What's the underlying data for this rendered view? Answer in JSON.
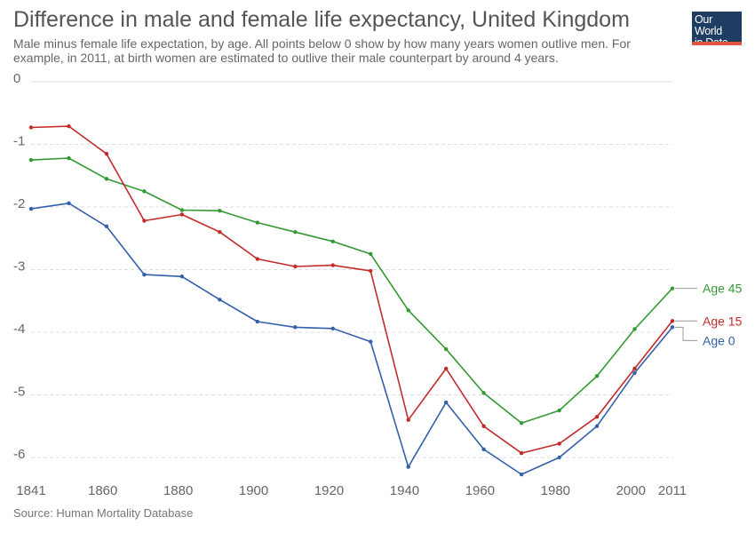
{
  "title": "Difference in male and female life expectancy, United Kingdom",
  "subtitle": "Male minus female life expectation, by age. All points below 0 show by how many years women outlive men. For example, in 2011, at birth women are estimated to outlive their male counterpart by around 4 years.",
  "logo": {
    "line1": "Our World",
    "line2": "in Data"
  },
  "source": "Source: Human Mortality Database",
  "colors": {
    "Age 0": "#3360a9",
    "Age 15": "#c42a2a",
    "Age 45": "#339933"
  },
  "chart_data": {
    "type": "line",
    "title": "Difference in male and female life expectancy, United Kingdom",
    "xlabel": "",
    "ylabel": "",
    "ylim": [
      -6.3,
      0
    ],
    "xlim": [
      1841,
      2011
    ],
    "yticks": [
      0,
      -1,
      -2,
      -3,
      -4,
      -5,
      -6
    ],
    "ytick_labels": [
      "0",
      "-1",
      "-2",
      "-3",
      "-4",
      "-5",
      "-6"
    ],
    "xticks": [
      1841,
      1860,
      1880,
      1900,
      1920,
      1940,
      1960,
      1980,
      2000,
      2011
    ],
    "xtick_labels": [
      "1841",
      "1860",
      "1880",
      "1900",
      "1920",
      "1940",
      "1960",
      "1980",
      "2000",
      "2011"
    ],
    "x": [
      1841,
      1851,
      1861,
      1871,
      1881,
      1891,
      1901,
      1911,
      1921,
      1931,
      1941,
      1951,
      1961,
      1971,
      1981,
      1991,
      2001,
      2011
    ],
    "series": [
      {
        "name": "Age 45",
        "values": [
          -1.25,
          -1.22,
          -1.55,
          -1.75,
          -2.05,
          -2.06,
          -2.25,
          -2.4,
          -2.55,
          -2.75,
          -3.65,
          -4.27,
          -4.97,
          -5.45,
          -5.25,
          -4.7,
          -3.95,
          -3.3
        ]
      },
      {
        "name": "Age 15",
        "values": [
          -0.73,
          -0.71,
          -1.15,
          -2.22,
          -2.12,
          -2.4,
          -2.83,
          -2.95,
          -2.93,
          -3.02,
          -5.4,
          -4.58,
          -5.5,
          -5.93,
          -5.78,
          -5.35,
          -4.58,
          -3.82
        ]
      },
      {
        "name": "Age 0",
        "values": [
          -2.03,
          -1.94,
          -2.31,
          -3.08,
          -3.11,
          -3.48,
          -3.83,
          -3.92,
          -3.94,
          -4.15,
          -6.15,
          -5.12,
          -5.87,
          -6.27,
          -6.0,
          -5.5,
          -4.65,
          -3.92
        ]
      }
    ]
  }
}
